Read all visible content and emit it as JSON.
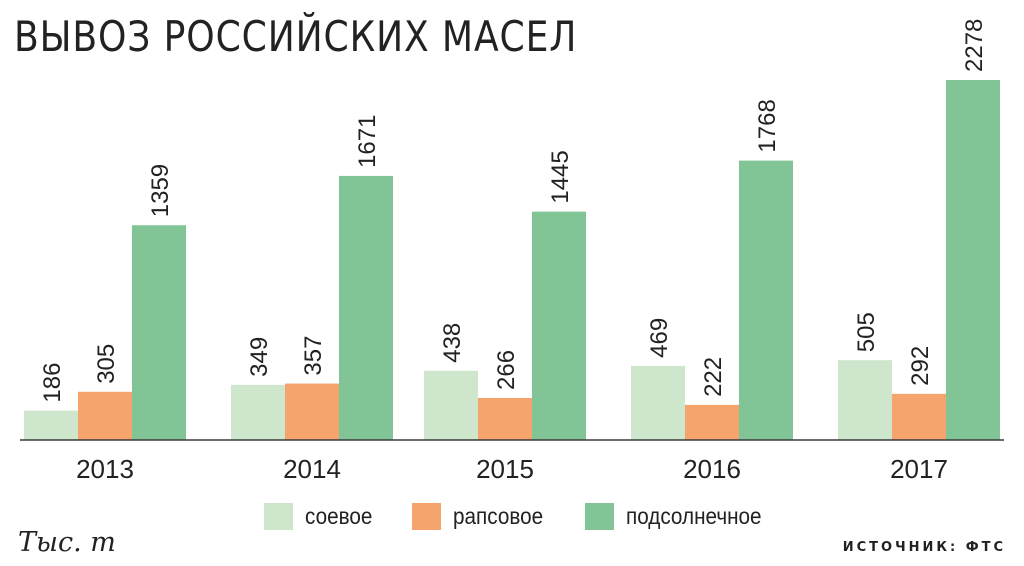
{
  "title": "ВЫВОЗ РОССИЙСКИХ МАСЕЛ",
  "unit_label": "Тыс. т",
  "source": "ИСТОЧНИК: ФТС",
  "legend": [
    {
      "label": "соевое",
      "color": "#cde6cc"
    },
    {
      "label": "рапсовое",
      "color": "#f4a46c"
    },
    {
      "label": "подсолнечное",
      "color": "#81c495"
    }
  ],
  "chart_data": {
    "type": "bar",
    "categories": [
      "2013",
      "2014",
      "2015",
      "2016",
      "2017"
    ],
    "series": [
      {
        "name": "соевое",
        "color": "#cde6cc",
        "values": [
          186,
          349,
          438,
          469,
          505
        ]
      },
      {
        "name": "рапсовое",
        "color": "#f4a46c",
        "values": [
          305,
          357,
          266,
          222,
          292
        ]
      },
      {
        "name": "подсолнечное",
        "color": "#81c495",
        "values": [
          1359,
          1671,
          1445,
          1768,
          2278
        ]
      }
    ],
    "title": "ВЫВОЗ РОССИЙСКИХ МАСЕЛ",
    "ylabel": "Тыс. т",
    "ylim": [
      0,
      2278
    ],
    "grid": false,
    "legend_position": "bottom",
    "data_labels": true
  }
}
